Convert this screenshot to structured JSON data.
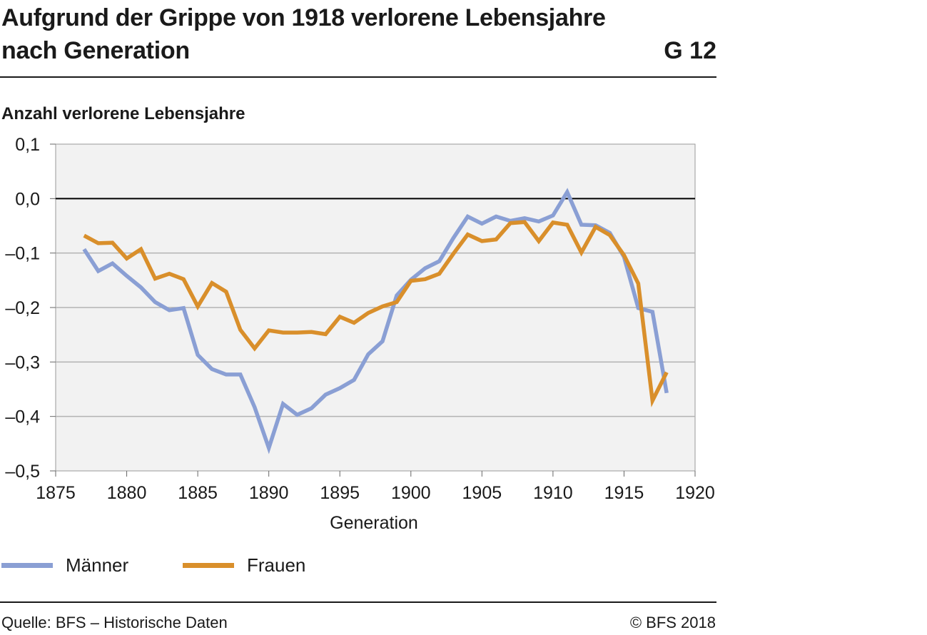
{
  "header": {
    "title_line1": "Aufgrund der Grippe von 1918 verlorene Lebensjahre",
    "title_line2": "nach Generation",
    "code": "G 12"
  },
  "footer": {
    "source": "Quelle: BFS – Historische Daten",
    "copyright": "© BFS 2018"
  },
  "chart_data": {
    "type": "line",
    "ylabel": "Anzahl verlorene Lebensjahre",
    "xlabel": "Generation",
    "xlim": [
      1875,
      1920
    ],
    "ylim": [
      -0.5,
      0.1
    ],
    "x_ticks": [
      "1875",
      "1880",
      "1885",
      "1890",
      "1895",
      "1900",
      "1905",
      "1910",
      "1915",
      "1920"
    ],
    "y_ticks": [
      "0,1",
      "0,0",
      "–0,1",
      "–0,2",
      "–0,3",
      "–0,4",
      "–0,5"
    ],
    "grid": true,
    "background": "#f2f2f2",
    "legend_position": "bottom-left",
    "x": [
      1877,
      1878,
      1879,
      1880,
      1881,
      1882,
      1883,
      1884,
      1885,
      1886,
      1887,
      1888,
      1889,
      1890,
      1891,
      1892,
      1893,
      1894,
      1895,
      1896,
      1897,
      1898,
      1899,
      1900,
      1901,
      1902,
      1903,
      1904,
      1905,
      1906,
      1907,
      1908,
      1909,
      1910,
      1911,
      1912,
      1913,
      1914,
      1915,
      1916,
      1917,
      1918
    ],
    "series": [
      {
        "name": "Männer",
        "color": "#8a9fd4",
        "values": [
          -0.093,
          -0.133,
          -0.119,
          -0.142,
          -0.163,
          -0.19,
          -0.205,
          -0.201,
          -0.287,
          -0.313,
          -0.323,
          -0.323,
          -0.383,
          -0.458,
          -0.377,
          -0.397,
          -0.385,
          -0.36,
          -0.348,
          -0.333,
          -0.286,
          -0.262,
          -0.178,
          -0.149,
          -0.128,
          -0.115,
          -0.072,
          -0.033,
          -0.046,
          -0.033,
          -0.041,
          -0.036,
          -0.042,
          -0.031,
          0.012,
          -0.048,
          -0.049,
          -0.063,
          -0.107,
          -0.201,
          -0.208,
          -0.357
        ]
      },
      {
        "name": "Frauen",
        "color": "#d98f2b",
        "values": [
          -0.068,
          -0.082,
          -0.081,
          -0.11,
          -0.093,
          -0.147,
          -0.138,
          -0.148,
          -0.198,
          -0.155,
          -0.171,
          -0.241,
          -0.275,
          -0.242,
          -0.246,
          -0.246,
          -0.245,
          -0.249,
          -0.217,
          -0.228,
          -0.21,
          -0.198,
          -0.19,
          -0.151,
          -0.148,
          -0.138,
          -0.101,
          -0.066,
          -0.078,
          -0.075,
          -0.045,
          -0.043,
          -0.078,
          -0.044,
          -0.048,
          -0.099,
          -0.052,
          -0.067,
          -0.104,
          -0.156,
          -0.371,
          -0.319
        ]
      }
    ]
  }
}
